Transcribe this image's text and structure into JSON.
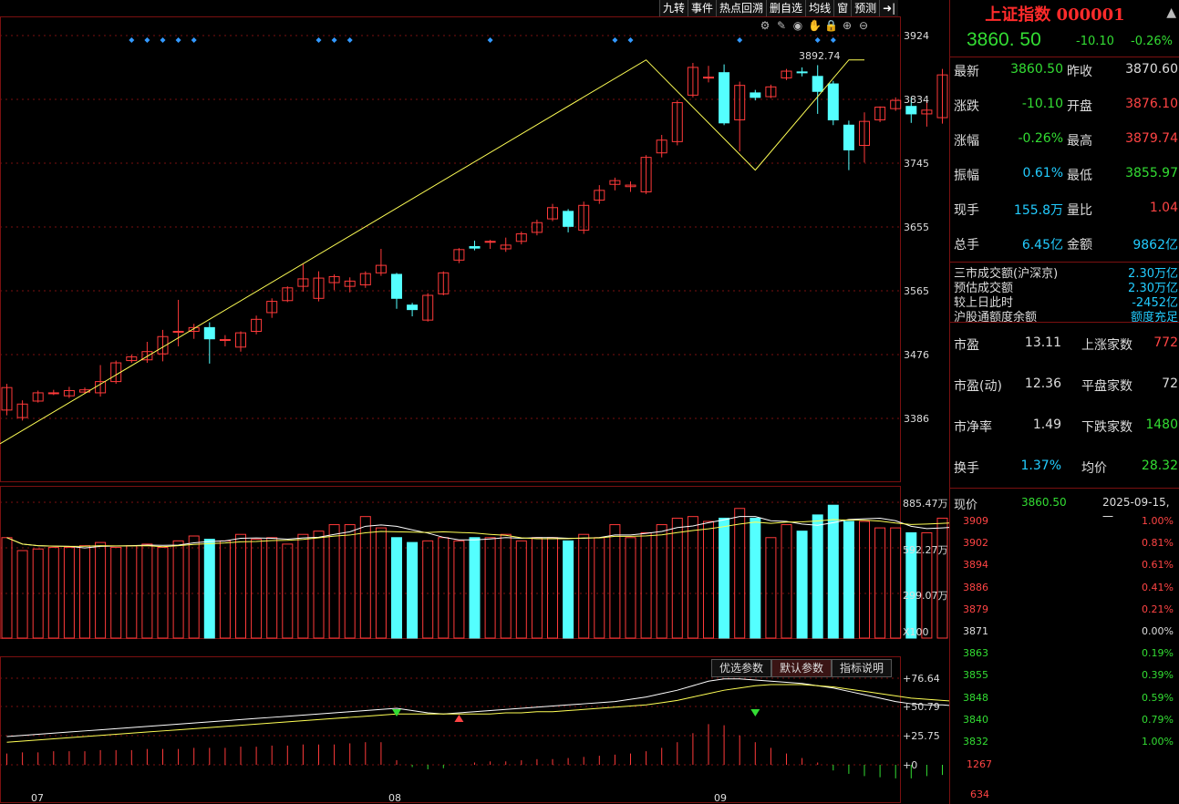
{
  "toolbar": [
    "九转",
    "事件",
    "热点回溯",
    "删自选",
    "均线",
    "窗",
    "预测"
  ],
  "main_price_axis": [
    "3924",
    "3834",
    "3745",
    "3655",
    "3565",
    "3476",
    "3386"
  ],
  "peak_label": "3892.74",
  "volume_axis": [
    "885.47万",
    "592.27万",
    "299.07万"
  ],
  "volume_unit": "X100",
  "indicator_tabs": [
    "优选参数",
    "默认参数",
    "指标说明"
  ],
  "indicator_axis": [
    "+76.64",
    "+50.79",
    "+25.75",
    "+0"
  ],
  "months": [
    "07",
    "08",
    "09"
  ],
  "stock": {
    "name_code": "上证指数 000001",
    "price": "3860. 50",
    "change": "-10.10",
    "pct": "-0.26%"
  },
  "stats": [
    {
      "l": "最新",
      "v1": "3860.50",
      "c1": "green",
      "l2": "昨收",
      "v2": "3870.60",
      "c2": "white"
    },
    {
      "l": "涨跌",
      "v1": "-10.10",
      "c1": "green",
      "l2": "开盘",
      "v2": "3876.10",
      "c2": "red"
    },
    {
      "l": "涨幅",
      "v1": "-0.26%",
      "c1": "green",
      "l2": "最高",
      "v2": "3879.74",
      "c2": "red"
    },
    {
      "l": "振幅",
      "v1": "0.61%",
      "c1": "cyan",
      "l2": "最低",
      "v2": "3855.97",
      "c2": "green"
    },
    {
      "l": "现手",
      "v1": "155.8万",
      "c1": "cyan",
      "l2": "量比",
      "v2": "1.04",
      "c2": "red"
    },
    {
      "l": "总手",
      "v1": "6.45亿",
      "c1": "cyan",
      "l2": "金额",
      "v2": "9862亿",
      "c2": "cyan"
    }
  ],
  "market": [
    {
      "l": "三市成交额(沪深京)",
      "v": "2.30万亿"
    },
    {
      "l": "预估成交额",
      "v": "2.30万亿"
    },
    {
      "l": "较上日此时",
      "v": "-2452亿"
    },
    {
      "l": "沪股通额度余额",
      "v": "额度充足"
    }
  ],
  "valuation": [
    {
      "l": "市盈",
      "v1": "13.11",
      "c1": "white",
      "l2": "上涨家数",
      "v2": "772",
      "c2": "red"
    },
    {
      "l": "市盈(动)",
      "v1": "12.36",
      "c1": "white",
      "l2": "平盘家数",
      "v2": "72",
      "c2": "white"
    },
    {
      "l": "市净率",
      "v1": "1.49",
      "c1": "white",
      "l2": "下跌家数",
      "v2": "1480",
      "c2": "green"
    },
    {
      "l": "换手",
      "v1": "1.37%",
      "c1": "cyan",
      "l2": "均价",
      "v2": "28.32",
      "c2": "green"
    }
  ],
  "mini": {
    "label": "现价",
    "price": "3860.50",
    "date": "2025-09-15,一",
    "left_axis": [
      "3909",
      "3902",
      "3894",
      "3886",
      "3879",
      "3871",
      "3863",
      "3855",
      "3848",
      "3840",
      "3832"
    ],
    "right_axis": [
      "1.00%",
      "0.81%",
      "0.61%",
      "0.41%",
      "0.21%",
      "0.00%",
      "0.19%",
      "0.39%",
      "0.59%",
      "0.79%",
      "1.00%"
    ],
    "vol_axis": [
      "1267",
      "634"
    ]
  },
  "chart_data": {
    "type": "candlestick",
    "price_range": [
      3330,
      3950
    ],
    "candles": [
      [
        3425,
        3455,
        3418,
        3460
      ],
      [
        3415,
        3433,
        3411,
        3438
      ],
      [
        3437,
        3448,
        3435,
        3451
      ],
      [
        3447,
        3448,
        3445,
        3452
      ],
      [
        3444,
        3451,
        3441,
        3456
      ],
      [
        3449,
        3452,
        3447,
        3455
      ],
      [
        3448,
        3463,
        3443,
        3485
      ],
      [
        3463,
        3488,
        3460,
        3491
      ],
      [
        3491,
        3496,
        3488,
        3499
      ],
      [
        3492,
        3503,
        3488,
        3516
      ],
      [
        3500,
        3523,
        3490,
        3532
      ],
      [
        3530,
        3530,
        3510,
        3572
      ],
      [
        3530,
        3535,
        3520,
        3540
      ],
      [
        3535,
        3520,
        3487,
        3542
      ],
      [
        3518,
        3519,
        3510,
        3525
      ],
      [
        3509,
        3528,
        3503,
        3530
      ],
      [
        3530,
        3546,
        3526,
        3551
      ],
      [
        3555,
        3570,
        3548,
        3574
      ],
      [
        3571,
        3588,
        3569,
        3590
      ],
      [
        3590,
        3600,
        3583,
        3620
      ],
      [
        3574,
        3601,
        3570,
        3610
      ],
      [
        3595,
        3603,
        3585,
        3606
      ],
      [
        3590,
        3597,
        3582,
        3602
      ],
      [
        3592,
        3607,
        3588,
        3610
      ],
      [
        3608,
        3618,
        3604,
        3640
      ],
      [
        3606,
        3574,
        3560,
        3608
      ],
      [
        3565,
        3559,
        3550,
        3568
      ],
      [
        3545,
        3578,
        3543,
        3581
      ],
      [
        3580,
        3608,
        3578,
        3610
      ],
      [
        3625,
        3639,
        3621,
        3641
      ],
      [
        3643,
        3641,
        3638,
        3651
      ],
      [
        3649,
        3650,
        3640,
        3652
      ],
      [
        3640,
        3645,
        3636,
        3655
      ],
      [
        3650,
        3660,
        3646,
        3663
      ],
      [
        3662,
        3675,
        3658,
        3679
      ],
      [
        3680,
        3695,
        3677,
        3700
      ],
      [
        3690,
        3670,
        3662,
        3693
      ],
      [
        3665,
        3698,
        3660,
        3703
      ],
      [
        3705,
        3718,
        3700,
        3725
      ],
      [
        3726,
        3731,
        3718,
        3735
      ],
      [
        3723,
        3725,
        3716,
        3730
      ],
      [
        3716,
        3762,
        3713,
        3765
      ],
      [
        3768,
        3785,
        3762,
        3792
      ],
      [
        3783,
        3835,
        3778,
        3838
      ],
      [
        3845,
        3882,
        3842,
        3888
      ],
      [
        3868,
        3869,
        3862,
        3884
      ],
      [
        3875,
        3808,
        3805,
        3886
      ],
      [
        3812,
        3858,
        3770,
        3863
      ],
      [
        3848,
        3842,
        3838,
        3852
      ],
      [
        3843,
        3856,
        3841,
        3859
      ],
      [
        3868,
        3877,
        3865,
        3880
      ],
      [
        3876,
        3875,
        3870,
        3882
      ],
      [
        3870,
        3850,
        3820,
        3885
      ],
      [
        3860,
        3812,
        3805,
        3864
      ],
      [
        3805,
        3772,
        3745,
        3811
      ],
      [
        3778,
        3810,
        3755,
        3822
      ],
      [
        3812,
        3829,
        3809,
        3830
      ],
      [
        3827,
        3838,
        3824,
        3842
      ],
      [
        3830,
        3820,
        3808,
        3842
      ],
      [
        3820,
        3825,
        3803,
        3838
      ],
      [
        3815,
        3872,
        3807,
        3880
      ],
      [
        3878,
        3875,
        3870,
        3892
      ],
      [
        3872,
        3860,
        3856,
        3880
      ]
    ],
    "volumes": [
      620,
      540,
      550,
      560,
      560,
      570,
      590,
      560,
      570,
      580,
      560,
      600,
      630,
      610,
      600,
      640,
      610,
      620,
      580,
      640,
      660,
      700,
      700,
      750,
      680,
      620,
      590,
      600,
      620,
      600,
      620,
      620,
      640,
      600,
      620,
      620,
      600,
      640,
      620,
      700,
      620,
      650,
      700,
      740,
      750,
      720,
      740,
      800,
      740,
      620,
      700,
      660,
      760,
      820,
      720,
      720,
      680,
      680,
      650,
      650,
      740,
      710,
      680
    ],
    "ind_white": [
      25,
      26,
      27,
      28,
      29,
      30,
      31,
      32,
      33,
      34,
      35,
      36,
      37,
      38,
      39,
      40,
      41,
      42,
      43,
      44,
      45,
      46,
      47,
      48,
      49,
      50,
      48,
      46,
      45,
      46,
      47,
      48,
      49,
      50,
      51,
      52,
      53,
      54,
      55,
      56,
      58,
      60,
      63,
      66,
      70,
      74,
      76,
      76,
      75,
      74,
      73,
      72,
      70,
      68,
      65,
      62,
      59,
      56,
      54,
      53,
      53,
      52,
      51
    ],
    "ind_yellow": [
      20,
      21,
      22,
      23,
      24,
      25,
      26,
      27,
      28,
      29,
      30,
      31,
      32,
      33,
      34,
      35,
      36,
      37,
      38,
      39,
      40,
      41,
      42,
      43,
      44,
      45,
      45,
      45,
      45,
      45,
      45,
      45,
      46,
      46,
      47,
      47,
      48,
      49,
      50,
      51,
      52,
      53,
      55,
      57,
      60,
      63,
      66,
      68,
      70,
      71,
      71,
      71,
      70,
      69,
      67,
      65,
      63,
      61,
      59,
      58,
      57,
      56,
      55
    ],
    "ind_bars": [
      10,
      11,
      11,
      12,
      12,
      12,
      13,
      13,
      13,
      14,
      14,
      14,
      15,
      15,
      15,
      16,
      16,
      17,
      17,
      18,
      18,
      18,
      19,
      20,
      20,
      4,
      -2,
      -4,
      -3,
      0,
      2,
      3,
      3,
      4,
      5,
      5,
      6,
      7,
      8,
      9,
      10,
      12,
      15,
      20,
      28,
      36,
      35,
      26,
      20,
      15,
      10,
      6,
      2,
      -5,
      -8,
      -10,
      -11,
      -12,
      -12,
      -10,
      -9,
      -8,
      -7
    ]
  }
}
